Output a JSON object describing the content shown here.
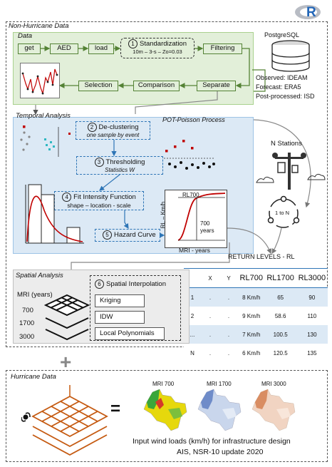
{
  "logo": "R",
  "non_hurricane_title": "Non-Hurricane  Data",
  "data_section": {
    "title": "Data",
    "boxes": [
      "get",
      "AED",
      "load",
      "Filtering"
    ],
    "standardization": {
      "num": "1",
      "label": "Standardization",
      "sub": "10m – 3-s – Zo=0.03"
    },
    "bottom_boxes": [
      "Selection",
      "Comparison",
      "Separate"
    ],
    "db_label": "PostgreSQL",
    "sources": [
      "Observed: IDEAM",
      "Forecast: ERA5",
      "Post-processed: ISD"
    ]
  },
  "temporal": {
    "title": "Temporal Analysis",
    "pot_title": "POT-Poisson Process",
    "steps": [
      {
        "num": "2",
        "label": "De-clustering",
        "sub": "one sample by event"
      },
      {
        "num": "3",
        "label": "Thresholding",
        "sub": "Statistics W"
      },
      {
        "num": "4",
        "label": "Fit Intensity Function",
        "sub": "shape – location - scale"
      },
      {
        "num": "5",
        "label": "Hazard Curve",
        "sub": ""
      }
    ],
    "curve": {
      "rl_label": "RL700",
      "years_value": "700",
      "years_word": "years",
      "ylabel": "RL – Km/h",
      "xlabel": "MRI - years"
    }
  },
  "stations": {
    "title": "N Stations",
    "cycle": "1 to N"
  },
  "return_levels": {
    "title": "RETURN LEVELS - RL",
    "headers": [
      "",
      "X",
      "Y",
      "RL700",
      "RL1700",
      "RL3000"
    ],
    "rows": [
      [
        "1",
        ".",
        ".",
        "8 Km/h",
        "65",
        "90"
      ],
      [
        "2",
        ".",
        ".",
        "9 Km/h",
        "58.6",
        "110"
      ],
      [
        "...",
        ".",
        ".",
        "7 Km/h",
        "100.5",
        "130"
      ],
      [
        "N",
        ".",
        ".",
        "6 Km/h",
        "120.5",
        "135"
      ]
    ]
  },
  "spatial": {
    "title": "Spatial Analysis",
    "mri_label": "MRI (years)",
    "mri_values": [
      "700",
      "1700",
      "3000"
    ],
    "interp": {
      "num": "6",
      "label": "Spatial Interpolation",
      "methods": [
        "Kriging",
        "IDW",
        "Local Polynomials"
      ]
    }
  },
  "hurricane": {
    "title": "Hurricane  Data",
    "plus": "+",
    "equals": "=",
    "maps": [
      "MRI 700",
      "MRI 1700",
      "MRI 3000"
    ],
    "caption1": "Input wind loads (km/h) for infrastructure design",
    "caption2": "AIS, NSR-10 update 2020"
  },
  "colors": {
    "green": "#548235",
    "blue": "#2e75b6",
    "red": "#c00000",
    "orange": "#c55a11"
  }
}
